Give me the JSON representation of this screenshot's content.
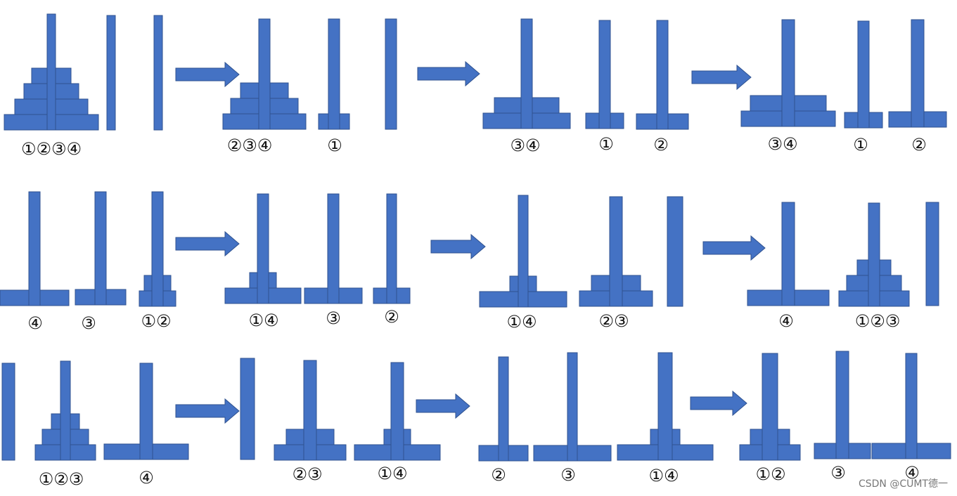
{
  "labels": [
    "①②③④",
    "②③④",
    "①",
    "③④",
    "①",
    "②",
    "③④",
    "①",
    "②",
    "④",
    "③",
    "①②",
    "①④",
    "③",
    "②",
    "①④",
    "②③",
    "④",
    "①②③",
    "①②③",
    "④",
    "②③",
    "①④",
    "②",
    "③",
    "①④",
    "①②",
    "③",
    "④"
  ],
  "watermark": "CSDN @CUMT德一"
}
